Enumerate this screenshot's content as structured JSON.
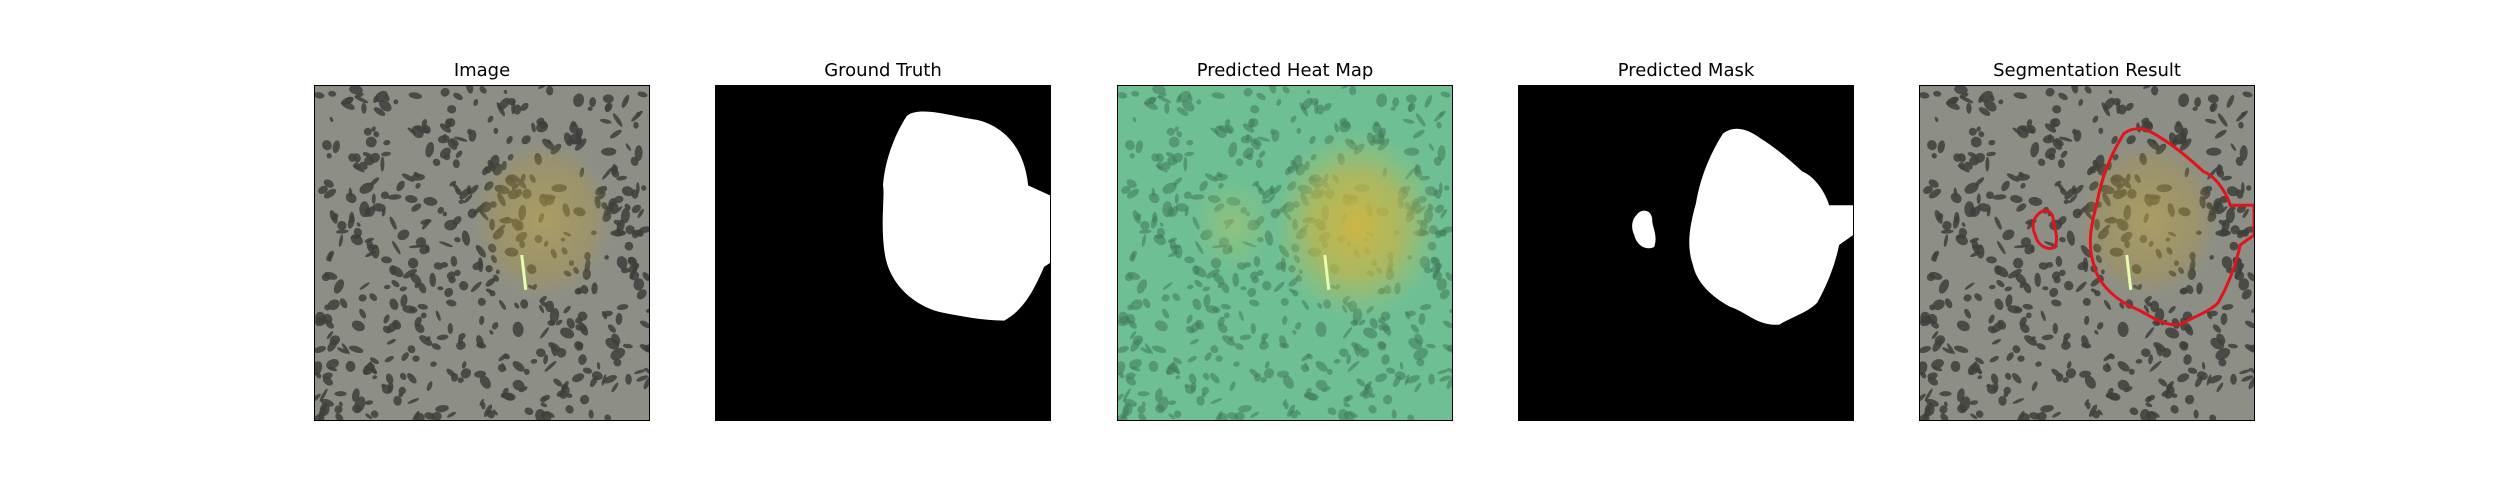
{
  "figure": {
    "panels": [
      {
        "title": "Image"
      },
      {
        "title": "Ground Truth"
      },
      {
        "title": "Predicted Heat Map"
      },
      {
        "title": "Predicted Mask"
      },
      {
        "title": "Segmentation Result"
      }
    ]
  },
  "colors": {
    "texture_base": "#8d8f87",
    "texture_spot": "#3e3f3b",
    "defect_tint": "#b49a40",
    "mask_fg": "#ffffff",
    "mask_bg": "#000000",
    "heat_base": "#6fbf95",
    "heat_hot": "#d7b53c",
    "contour": "#e0141a"
  }
}
